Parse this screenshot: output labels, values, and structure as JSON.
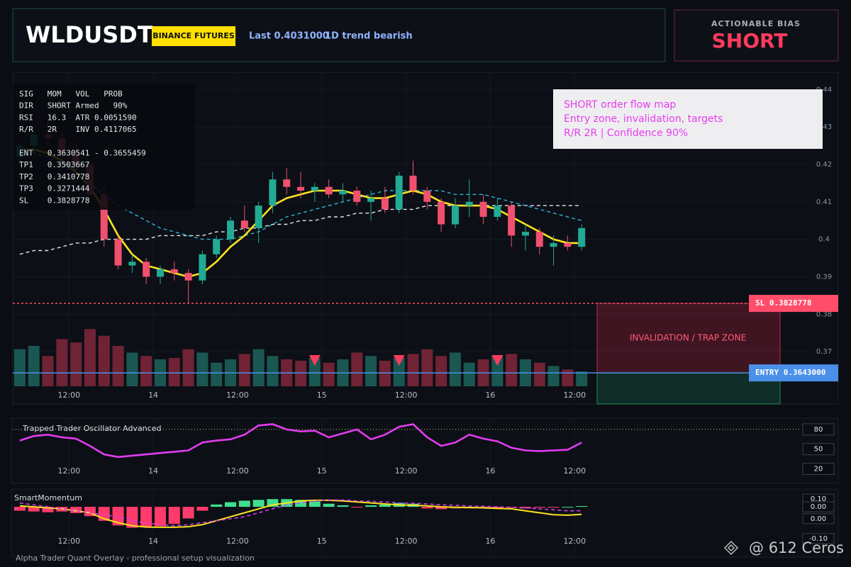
{
  "header": {
    "symbol": "WLDUSDT",
    "exchange": "BINANCE FUTURES",
    "last": "Last 0.4031000",
    "trend": "1D trend bearish"
  },
  "bias": {
    "label": "ACTIONABLE BIAS",
    "value": "SHORT"
  },
  "info_panel": [
    [
      "SIG   MOM   VOL   PROB",
      "DIR   SHORT Armed   90%",
      "RSI   16.3  ATR 0.0051590",
      "R/R   2R    INV 0.4117065"
    ],
    [
      "ENT   0.3630541 - 0.3655459",
      "TP1   0.3503667",
      "TP2   0.3410778",
      "TP3   0.3271444",
      "SL    0.3828778"
    ]
  ],
  "annotation": [
    "SHORT order flow map",
    "Entry zone, invalidation, targets",
    "R/R 2R | Confidence 90%"
  ],
  "footer": "Alpha Trader Quant Overlay - professional setup visualization",
  "watermark": "@ 612 Ceros",
  "chart_data": [
    {
      "type": "candlestick",
      "up_color": "#22ab94",
      "down_color": "#f0506e",
      "grid": true,
      "x": [
        -19,
        -17,
        -15,
        -13,
        -11,
        -9,
        -7,
        -5,
        -3,
        -1,
        1,
        3,
        5,
        7,
        9,
        11,
        13,
        15,
        17,
        19,
        21,
        23,
        25,
        27,
        29,
        31,
        33,
        35,
        37,
        39,
        41,
        43,
        45,
        47,
        49,
        51,
        53,
        55,
        57,
        59,
        61
      ],
      "open": [
        0.422,
        0.425,
        0.428,
        0.427,
        0.423,
        0.42,
        0.412,
        0.4,
        0.393,
        0.394,
        0.39,
        0.392,
        0.391,
        0.389,
        0.396,
        0.4,
        0.405,
        0.403,
        0.409,
        0.416,
        0.414,
        0.413,
        0.414,
        0.412,
        0.413,
        0.41,
        0.411,
        0.408,
        0.417,
        0.413,
        0.41,
        0.404,
        0.409,
        0.41,
        0.406,
        0.409,
        0.401,
        0.402,
        0.398,
        0.399,
        0.398
      ],
      "high": [
        0.426,
        0.43,
        0.433,
        0.429,
        0.426,
        0.421,
        0.414,
        0.401,
        0.396,
        0.395,
        0.393,
        0.394,
        0.392,
        0.397,
        0.401,
        0.406,
        0.409,
        0.41,
        0.418,
        0.419,
        0.418,
        0.415,
        0.416,
        0.415,
        0.414,
        0.413,
        0.414,
        0.418,
        0.421,
        0.414,
        0.411,
        0.411,
        0.416,
        0.412,
        0.411,
        0.41,
        0.404,
        0.403,
        0.401,
        0.401,
        0.404
      ],
      "low": [
        0.42,
        0.423,
        0.425,
        0.421,
        0.418,
        0.41,
        0.398,
        0.392,
        0.391,
        0.388,
        0.388,
        0.389,
        0.383,
        0.388,
        0.395,
        0.399,
        0.402,
        0.399,
        0.407,
        0.412,
        0.411,
        0.41,
        0.411,
        0.41,
        0.409,
        0.405,
        0.407,
        0.407,
        0.412,
        0.408,
        0.402,
        0.403,
        0.406,
        0.404,
        0.405,
        0.398,
        0.397,
        0.396,
        0.393,
        0.397,
        0.397
      ],
      "close": [
        0.425,
        0.428,
        0.427,
        0.423,
        0.42,
        0.412,
        0.4,
        0.393,
        0.394,
        0.39,
        0.392,
        0.391,
        0.389,
        0.396,
        0.4,
        0.405,
        0.403,
        0.409,
        0.416,
        0.414,
        0.413,
        0.414,
        0.412,
        0.413,
        0.41,
        0.411,
        0.408,
        0.417,
        0.413,
        0.41,
        0.404,
        0.409,
        0.41,
        0.406,
        0.409,
        0.401,
        0.402,
        0.398,
        0.399,
        0.398,
        0.403
      ],
      "series": [
        {
          "color": "#e6e6e6",
          "style": "dashed",
          "values": [
            0.396,
            0.397,
            0.397,
            0.398,
            0.399,
            0.399,
            0.4,
            0.4,
            0.4,
            0.4,
            0.401,
            0.401,
            0.401,
            0.401,
            0.402,
            0.402,
            0.403,
            0.403,
            0.404,
            0.404,
            0.405,
            0.405,
            0.406,
            0.406,
            0.407,
            0.407,
            0.408,
            0.408,
            0.408,
            0.409,
            0.409,
            0.409,
            0.409,
            0.409,
            0.409,
            0.409,
            0.409,
            0.409,
            0.409,
            0.409,
            0.409
          ]
        },
        {
          "color": "#2bb6d8",
          "style": "dashed",
          "values": [
            0.424,
            0.423,
            0.422,
            0.42,
            0.418,
            0.415,
            0.412,
            0.409,
            0.407,
            0.405,
            0.403,
            0.402,
            0.401,
            0.4,
            0.4,
            0.4,
            0.401,
            0.402,
            0.404,
            0.406,
            0.407,
            0.408,
            0.409,
            0.41,
            0.411,
            0.412,
            0.413,
            0.413,
            0.413,
            0.413,
            0.413,
            0.412,
            0.412,
            0.412,
            0.411,
            0.41,
            0.409,
            0.408,
            0.407,
            0.406,
            0.405
          ]
        },
        {
          "color": "#ffe21f",
          "style": "solid",
          "values": [
            0.424,
            0.424,
            0.423,
            0.421,
            0.418,
            0.414,
            0.408,
            0.401,
            0.396,
            0.393,
            0.392,
            0.391,
            0.39,
            0.391,
            0.394,
            0.398,
            0.401,
            0.405,
            0.409,
            0.411,
            0.412,
            0.413,
            0.413,
            0.413,
            0.412,
            0.411,
            0.411,
            0.412,
            0.413,
            0.412,
            0.41,
            0.409,
            0.409,
            0.409,
            0.408,
            0.406,
            0.404,
            0.402,
            0.4,
            0.399,
            0.399
          ]
        }
      ],
      "volume": {
        "ylim": [
          0,
          100
        ],
        "values": [
          55,
          60,
          45,
          70,
          65,
          85,
          75,
          60,
          50,
          45,
          40,
          42,
          55,
          50,
          35,
          40,
          48,
          55,
          45,
          40,
          38,
          42,
          35,
          40,
          50,
          45,
          38,
          42,
          48,
          55,
          45,
          50,
          35,
          40,
          45,
          48,
          40,
          35,
          30,
          25,
          22
        ]
      },
      "levels": [
        {
          "label": "SL 0.3828778",
          "value": 0.3828778,
          "color": "#ff4d6a"
        },
        {
          "label": "ENTRY 0.3643000",
          "value": 0.3643,
          "color": "#4a8fe8"
        }
      ],
      "zone": "INVALIDATION / TRAP ZONE",
      "signals_x": [
        23,
        35,
        49
      ],
      "xlim": [
        -20,
        63
      ],
      "xticks": [
        {
          "value": -12,
          "label": "12:00"
        },
        {
          "value": 0,
          "label": "14"
        },
        {
          "value": 12,
          "label": "12:00"
        },
        {
          "value": 24,
          "label": "15"
        },
        {
          "value": 36,
          "label": "12:00"
        },
        {
          "value": 48,
          "label": "16"
        },
        {
          "value": 60,
          "label": "12:00"
        }
      ],
      "ylim": [
        0.356,
        0.445
      ],
      "yticks": [
        0.37,
        0.38,
        0.39,
        0.4,
        0.41,
        0.42,
        0.43,
        0.44
      ]
    },
    {
      "type": "line",
      "title": "Trapped Trader Oscillator Advanced",
      "color": "#e33cf0",
      "reference_line": 80,
      "values": [
        63,
        70,
        72,
        68,
        66,
        55,
        42,
        38,
        40,
        42,
        44,
        46,
        48,
        60,
        63,
        65,
        72,
        86,
        88,
        80,
        77,
        78,
        68,
        74,
        80,
        65,
        72,
        84,
        88,
        68,
        55,
        60,
        72,
        66,
        62,
        52,
        48,
        47,
        48,
        49,
        60
      ],
      "ylim": [
        0,
        95
      ],
      "yticks": [
        80,
        50,
        20
      ]
    },
    {
      "type": "bar",
      "title": "SmartMomentum",
      "up_color": "#3ee08f",
      "down_color": "#ff3b6b",
      "values": [
        -0.05,
        -0.06,
        -0.07,
        -0.06,
        -0.08,
        -0.12,
        -0.18,
        -0.24,
        -0.27,
        -0.26,
        -0.25,
        -0.22,
        -0.15,
        -0.05,
        0.03,
        0.06,
        0.08,
        0.09,
        0.1,
        0.1,
        0.09,
        0.07,
        0.04,
        0.02,
        -0.01,
        0.02,
        0.03,
        0.05,
        0.04,
        -0.02,
        -0.03,
        -0.02,
        -0.02,
        -0.01,
        -0.02,
        -0.01,
        -0.02,
        -0.01,
        -0.01,
        0,
        0.01
      ],
      "ylim": [
        -0.64,
        0.23
      ],
      "yticks": [
        {
          "value": 0.1,
          "label": "0.10"
        },
        {
          "value": 0,
          "label": "0.00"
        }
      ],
      "y2lim": [
        -0.19,
        0.15
      ],
      "y2ticks": [
        {
          "value": 0,
          "label": "0.00"
        },
        {
          "value": -0.1,
          "label": "-0.10"
        }
      ],
      "series": [
        {
          "color": "#ffe21f",
          "axis": "y2",
          "style": "solid",
          "values": [
            0.065,
            0.06,
            0.055,
            0.05,
            0.04,
            0.03,
            0,
            -0.02,
            -0.035,
            -0.042,
            -0.043,
            -0.043,
            -0.04,
            -0.03,
            -0.01,
            0.01,
            0.03,
            0.05,
            0.07,
            0.08,
            0.09,
            0.093,
            0.093,
            0.09,
            0.085,
            0.08,
            0.075,
            0.07,
            0.068,
            0.065,
            0.06,
            0.058,
            0.057,
            0.055,
            0.052,
            0.05,
            0.04,
            0.03,
            0.02,
            0.018,
            0.022
          ]
        },
        {
          "color": "#d63df0",
          "axis": "y2",
          "style": "dashed",
          "values": [
            0.08,
            0.07,
            0.06,
            0.05,
            0.04,
            0.03,
            0.02,
            0.01,
            -0.01,
            -0.02,
            -0.03,
            -0.035,
            -0.03,
            -0.02,
            -0.01,
            0,
            0.01,
            0.03,
            0.05,
            0.07,
            0.08,
            0.09,
            0.095,
            0.095,
            0.09,
            0.088,
            0.085,
            0.08,
            0.078,
            0.075,
            0.07,
            0.068,
            0.065,
            0.063,
            0.06,
            0.058,
            0.055,
            0.05,
            0.045,
            0.04,
            0.04
          ]
        }
      ]
    }
  ]
}
